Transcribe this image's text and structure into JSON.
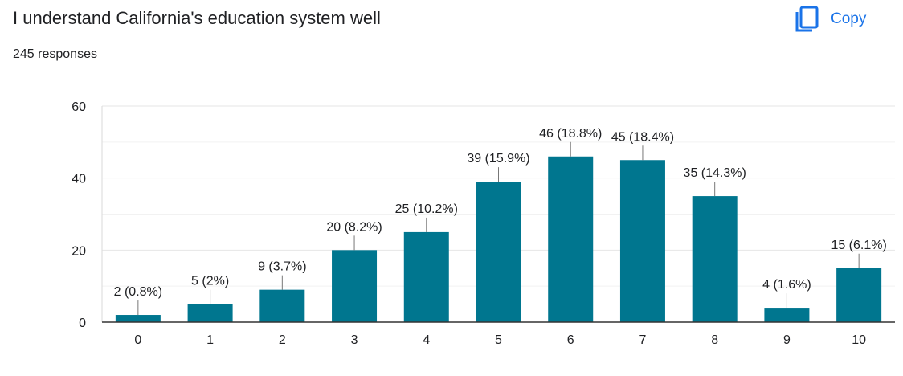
{
  "header": {
    "title": "I understand California's education system well",
    "responses": "245 responses",
    "copy_label": "Copy",
    "copy_icon": "copy-icon",
    "accent_color": "#1a73e8"
  },
  "chart_data": {
    "type": "bar",
    "title": "I understand California's education system well",
    "xlabel": "",
    "ylabel": "",
    "categories": [
      "0",
      "1",
      "2",
      "3",
      "4",
      "5",
      "6",
      "7",
      "8",
      "9",
      "10"
    ],
    "values": [
      2,
      5,
      9,
      20,
      25,
      39,
      46,
      45,
      35,
      4,
      15
    ],
    "data_labels": [
      "2 (0.8%)",
      "5 (2%)",
      "9 (3.7%)",
      "20 (8.2%)",
      "25 (10.2%)",
      "39 (15.9%)",
      "46 (18.8%)",
      "45 (18.4%)",
      "35 (14.3%)",
      "4 (1.6%)",
      "15 (6.1%)"
    ],
    "ylim": [
      0,
      60
    ],
    "yticks": [
      0,
      20,
      40,
      60
    ],
    "grid": true,
    "bar_color": "#00768f"
  }
}
